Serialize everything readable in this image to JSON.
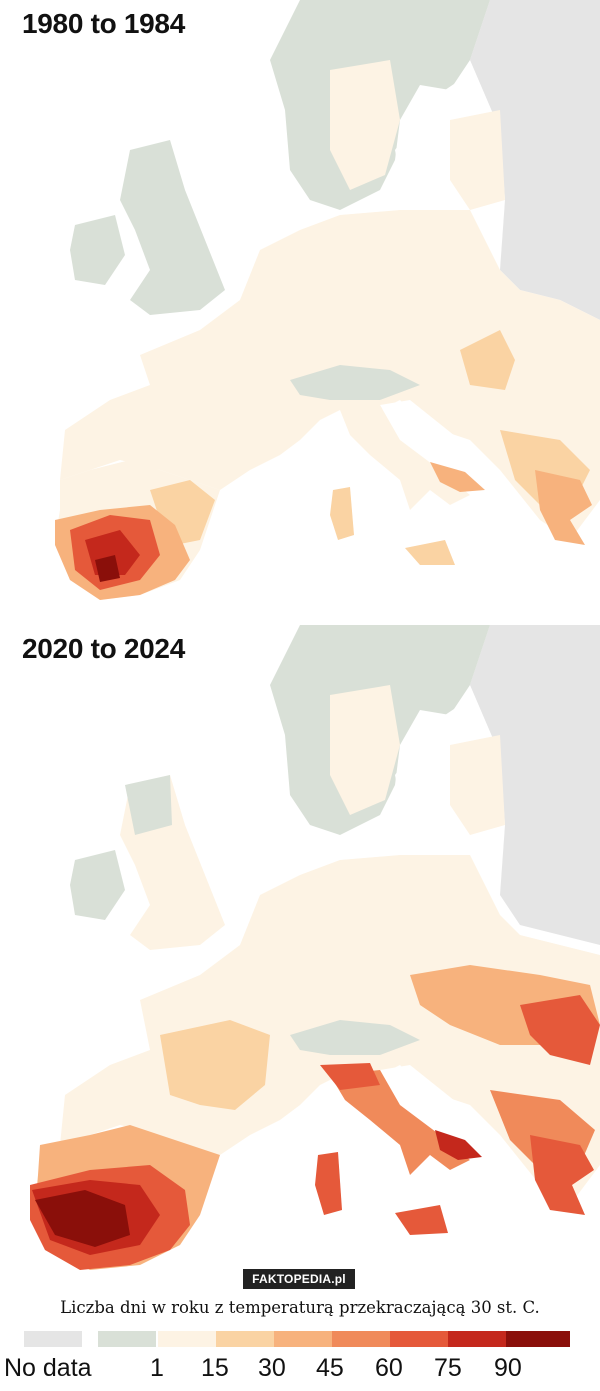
{
  "panels": [
    {
      "title": "1980 to 1984"
    },
    {
      "title": "2020 to 2024"
    }
  ],
  "colors": {
    "sea": "#ffffff",
    "land_nodata": "#e5e5e5",
    "land_zero": "#d9e0d7",
    "land_low": "#fdf3e4"
  },
  "watermark": "FAKTOPEDIA.pl",
  "caption": "Liczba dni w roku z temperaturą przekraczającą 30 st. C.",
  "legend": {
    "swatches": [
      {
        "color": "#e5e5e5"
      },
      {
        "color": "#d9e0d7"
      },
      {
        "color": "#fdf3e4"
      },
      {
        "color": "#fad3a3"
      },
      {
        "color": "#f7b27d"
      },
      {
        "color": "#f08a5a"
      },
      {
        "color": "#e5593a"
      },
      {
        "color": "#c4281c"
      },
      {
        "color": "#8a0f0a"
      }
    ],
    "labels": [
      "No data",
      "1",
      "15",
      "30",
      "45",
      "60",
      "75",
      "90"
    ]
  }
}
